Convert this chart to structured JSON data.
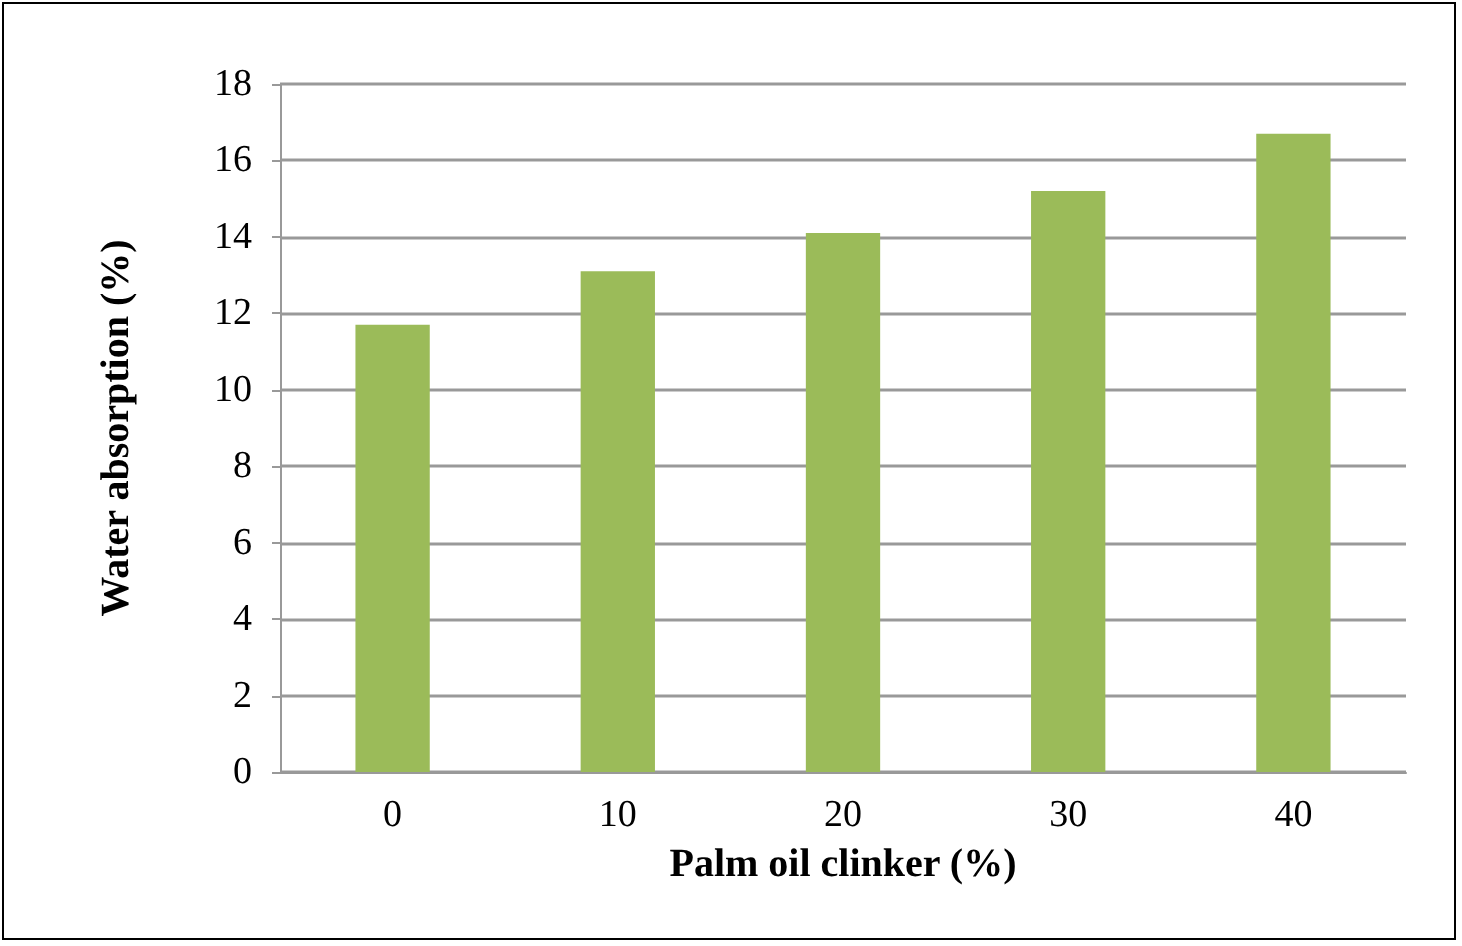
{
  "chart_data": {
    "type": "bar",
    "xlabel": "Palm oil clinker (%)",
    "ylabel": "Water absorption (%)",
    "categories": [
      "0",
      "10",
      "20",
      "30",
      "40"
    ],
    "values": [
      11.7,
      13.1,
      14.1,
      15.2,
      16.7
    ],
    "color": "#9bbb59",
    "ylim": [
      0,
      18
    ],
    "yticks": [
      0,
      2,
      4,
      6,
      8,
      10,
      12,
      14,
      16,
      18
    ],
    "grid": "y"
  }
}
